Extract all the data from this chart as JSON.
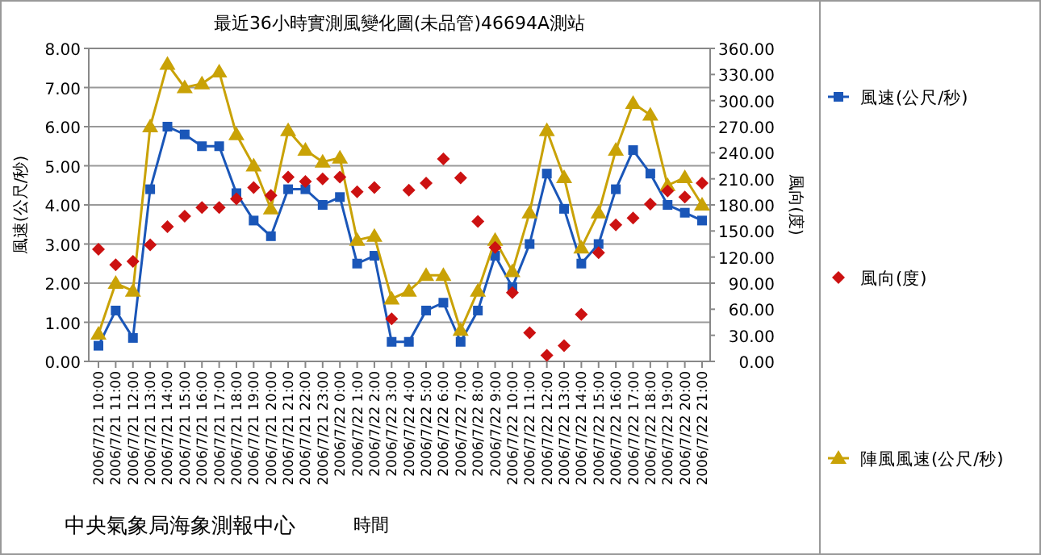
{
  "chart_data": {
    "type": "line",
    "title": "最近36小時實測風變化圖(未品管)46694A測站",
    "xlabel": "時間",
    "ylabel": "風速(公尺/秒)",
    "y2label": "風向(度)",
    "categories": [
      "2006/7/21 10:00",
      "2006/7/21 11:00",
      "2006/7/21 12:00",
      "2006/7/21 13:00",
      "2006/7/21 14:00",
      "2006/7/21 15:00",
      "2006/7/21 16:00",
      "2006/7/21 17:00",
      "2006/7/21 18:00",
      "2006/7/21 19:00",
      "2006/7/21 20:00",
      "2006/7/21 21:00",
      "2006/7/21 22:00",
      "2006/7/21 23:00",
      "2006/7/22 0:00",
      "2006/7/22 1:00",
      "2006/7/22 2:00",
      "2006/7/22 3:00",
      "2006/7/22 4:00",
      "2006/7/22 5:00",
      "2006/7/22 6:00",
      "2006/7/22 7:00",
      "2006/7/22 8:00",
      "2006/7/22 9:00",
      "2006/7/22 10:00",
      "2006/7/22 11:00",
      "2006/7/22 12:00",
      "2006/7/22 13:00",
      "2006/7/22 14:00",
      "2006/7/22 15:00",
      "2006/7/22 16:00",
      "2006/7/22 17:00",
      "2006/7/22 18:00",
      "2006/7/22 19:00",
      "2006/7/22 20:00",
      "2006/7/22 21:00"
    ],
    "series": [
      {
        "name": "風速(公尺/秒)",
        "marker": "square",
        "color": "#1a56b8",
        "values": [
          0.4,
          1.3,
          0.6,
          4.4,
          6.0,
          5.8,
          5.5,
          5.5,
          4.3,
          3.6,
          3.2,
          4.4,
          4.4,
          4.0,
          4.2,
          2.5,
          2.7,
          0.5,
          0.5,
          1.3,
          1.5,
          0.5,
          1.3,
          2.7,
          1.9,
          3.0,
          4.8,
          3.9,
          2.5,
          3.0,
          4.4,
          5.4,
          4.8,
          4.0,
          3.8,
          3.6
        ]
      },
      {
        "name": "風向(度)",
        "type": "scatter",
        "marker": "diamond",
        "axis": "y2",
        "color": "#cc1111",
        "values": [
          129,
          111,
          115,
          134,
          155,
          167,
          177,
          177,
          187,
          200,
          191,
          212,
          207,
          210,
          212,
          195,
          200,
          49,
          197,
          205,
          233,
          211,
          161,
          131,
          79,
          33,
          7,
          18,
          54,
          125,
          157,
          165,
          181,
          196,
          189,
          205
        ]
      },
      {
        "name": "陣風風速(公尺/秒)",
        "marker": "triangle",
        "color": "#c9a206",
        "values": [
          0.7,
          2.0,
          1.8,
          6.0,
          7.6,
          7.0,
          7.1,
          7.4,
          5.8,
          5.0,
          3.9,
          5.9,
          5.4,
          5.1,
          5.2,
          3.1,
          3.2,
          1.6,
          1.8,
          2.2,
          2.2,
          0.8,
          1.8,
          3.1,
          2.3,
          3.8,
          5.9,
          4.7,
          2.9,
          3.8,
          5.4,
          6.6,
          6.3,
          4.5,
          4.7,
          4.0
        ]
      }
    ],
    "ylim": [
      0,
      8
    ],
    "yticks": [
      {
        "value": 0,
        "label": "0.00"
      },
      {
        "value": 1,
        "label": "1.00"
      },
      {
        "value": 2,
        "label": "2.00"
      },
      {
        "value": 3,
        "label": "3.00"
      },
      {
        "value": 4,
        "label": "4.00"
      },
      {
        "value": 5,
        "label": "5.00"
      },
      {
        "value": 6,
        "label": "6.00"
      },
      {
        "value": 7,
        "label": "7.00"
      },
      {
        "value": 8,
        "label": "8.00"
      }
    ],
    "y2lim": [
      0,
      360
    ],
    "y2ticks": [
      {
        "value": 0,
        "label": "0.00"
      },
      {
        "value": 30,
        "label": "30.00"
      },
      {
        "value": 60,
        "label": "60.00"
      },
      {
        "value": 90,
        "label": "90.00"
      },
      {
        "value": 120,
        "label": "120.00"
      },
      {
        "value": 150,
        "label": "150.00"
      },
      {
        "value": 180,
        "label": "180.00"
      },
      {
        "value": 210,
        "label": "210.00"
      },
      {
        "value": 240,
        "label": "240.00"
      },
      {
        "value": 270,
        "label": "270.00"
      },
      {
        "value": 300,
        "label": "300.00"
      },
      {
        "value": 330,
        "label": "330.00"
      },
      {
        "value": 360,
        "label": "360.00"
      }
    ],
    "grid": "y",
    "legend": "right",
    "annotations": [
      "中央氣象局海象測報中心"
    ]
  }
}
